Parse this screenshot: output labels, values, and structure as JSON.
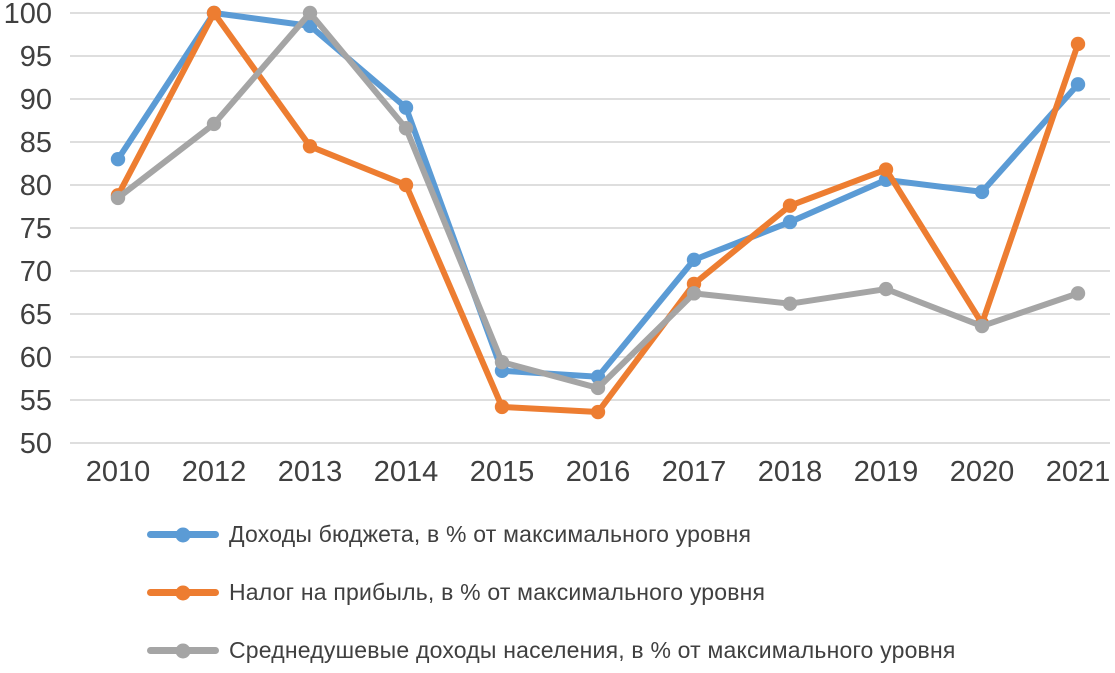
{
  "chart_data": {
    "type": "line",
    "title": "",
    "xlabel": "",
    "ylabel": "",
    "categories": [
      "2010",
      "2012",
      "2013",
      "2014",
      "2015",
      "2016",
      "2017",
      "2018",
      "2019",
      "2020",
      "2021"
    ],
    "series": [
      {
        "name": "Доходы бюджета, в % от максимального уровня",
        "color": "#5B9BD5",
        "values": [
          83,
          100,
          98.5,
          89,
          58.4,
          57.7,
          71.3,
          75.7,
          80.6,
          79.2,
          91.7
        ]
      },
      {
        "name": "Налог на прибыль, в % от максимального уровня",
        "color": "#ED7D31",
        "values": [
          78.8,
          100,
          84.5,
          80,
          54.2,
          53.6,
          68.5,
          77.6,
          81.8,
          63.9,
          96.4
        ]
      },
      {
        "name": "Среднедушевые доходы населения, в % от максимального уровня",
        "color": "#A5A5A5",
        "values": [
          78.5,
          87.1,
          100,
          86.6,
          59.4,
          56.4,
          67.4,
          66.2,
          67.9,
          63.6,
          67.4
        ]
      }
    ],
    "ylim": [
      50,
      100
    ],
    "yticks": [
      50,
      55,
      60,
      65,
      70,
      75,
      80,
      85,
      90,
      95,
      100
    ],
    "grid": "horizontal",
    "gridline_color": "#D9D9D9",
    "axis_text_color": "#404040",
    "legend_position": "bottom",
    "marker": "circle"
  }
}
